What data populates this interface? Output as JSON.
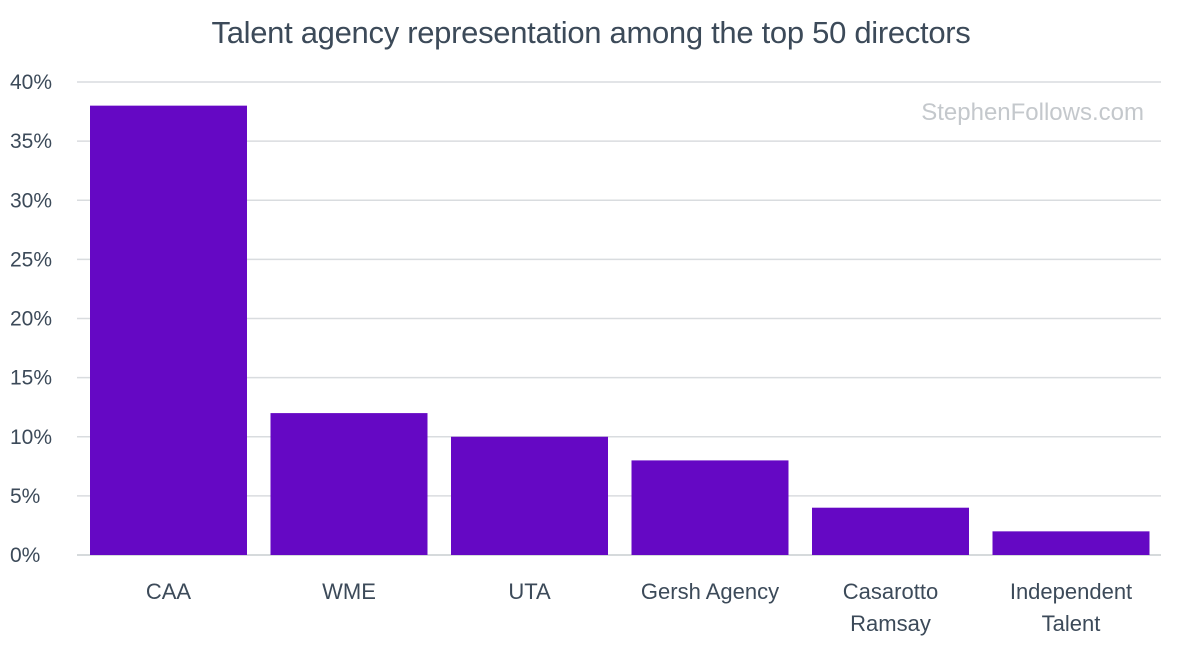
{
  "chart_data": {
    "type": "bar",
    "title": "Talent agency representation among the top 50 directors",
    "watermark": "StephenFollows.com",
    "xlabel": "",
    "ylabel": "",
    "categories": [
      [
        "CAA"
      ],
      [
        "WME"
      ],
      [
        "UTA"
      ],
      [
        "Gersh Agency"
      ],
      [
        "Casarotto",
        "Ramsay"
      ],
      [
        "Independent",
        "Talent"
      ]
    ],
    "values": [
      38,
      12,
      10,
      8,
      4,
      2
    ],
    "unit": "%",
    "ylim": [
      0,
      40
    ],
    "yticks": [
      0,
      5,
      10,
      15,
      20,
      25,
      30,
      35,
      40
    ],
    "ytick_labels": [
      "0%",
      "5%",
      "10%",
      "15%",
      "20%",
      "25%",
      "30%",
      "35%",
      "40%"
    ],
    "grid": true,
    "legend": "none",
    "colors": {
      "bar": "#6508c4",
      "text": "#3c4a59",
      "grid": "#d9dcdf",
      "watermark": "#c4c8cc"
    }
  }
}
